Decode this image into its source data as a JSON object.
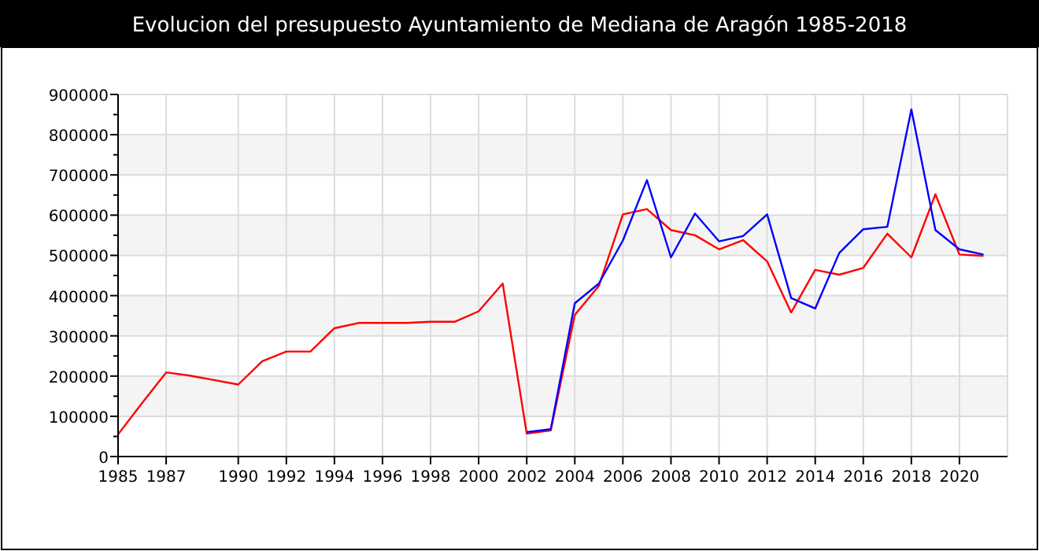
{
  "chart_data": {
    "type": "line",
    "title": "Evolucion del presupuesto Ayuntamiento de Mediana de Aragón 1985-2018",
    "xlim": [
      1985,
      2022
    ],
    "xticks": [
      1985,
      1987,
      1990,
      1992,
      1994,
      1996,
      1998,
      2000,
      2002,
      2004,
      2006,
      2008,
      2010,
      2012,
      2014,
      2016,
      2018,
      2020
    ],
    "ylim": [
      0,
      900000
    ],
    "yticks": [
      0,
      {
        "value": 50000,
        "label": null
      },
      100000,
      {
        "value": 150000,
        "label": null
      },
      200000,
      {
        "value": 250000,
        "label": null
      },
      300000,
      {
        "value": 350000,
        "label": null
      },
      400000,
      {
        "value": 450000,
        "label": null
      },
      500000,
      {
        "value": 550000,
        "label": null
      },
      600000,
      {
        "value": 650000,
        "label": null
      },
      700000,
      {
        "value": 750000,
        "label": null
      },
      800000,
      {
        "value": 850000,
        "label": null
      },
      900000
    ],
    "grid": true,
    "marker": "none",
    "line_style": "solid",
    "series": [
      {
        "color": "#ff0000",
        "x": [
          1985,
          1986,
          1987,
          1988,
          1989,
          1990,
          1991,
          1992,
          1993,
          1994,
          1995,
          1996,
          1997,
          1998,
          1999,
          2000,
          2001,
          2002,
          2003,
          2004,
          2005,
          2006,
          2007,
          2008,
          2009,
          2010,
          2011,
          2012,
          2013,
          2014,
          2015,
          2016,
          2017,
          2018,
          2019,
          2020,
          2021
        ],
        "values": [
          55000,
          133000,
          209000,
          201000,
          190000,
          179000,
          237000,
          261000,
          261000,
          319000,
          332000,
          332000,
          332000,
          335000,
          335000,
          361000,
          430000,
          57000,
          65000,
          352000,
          424000,
          602000,
          615000,
          563000,
          550000,
          515000,
          538000,
          485000,
          358000,
          464000,
          452000,
          469000,
          554000,
          495000,
          652000,
          502000,
          499000
        ]
      },
      {
        "color": "#0000ff",
        "x": [
          2002,
          2003,
          2004,
          2005,
          2006,
          2007,
          2008,
          2009,
          2010,
          2011,
          2012,
          2013,
          2014,
          2015,
          2016,
          2017,
          2018,
          2019,
          2020,
          2021
        ],
        "values": [
          61000,
          68000,
          381000,
          430000,
          537000,
          687000,
          495000,
          604000,
          535000,
          548000,
          602000,
          394000,
          368000,
          506000,
          565000,
          571000,
          863000,
          563000,
          515000,
          502000
        ]
      }
    ]
  }
}
